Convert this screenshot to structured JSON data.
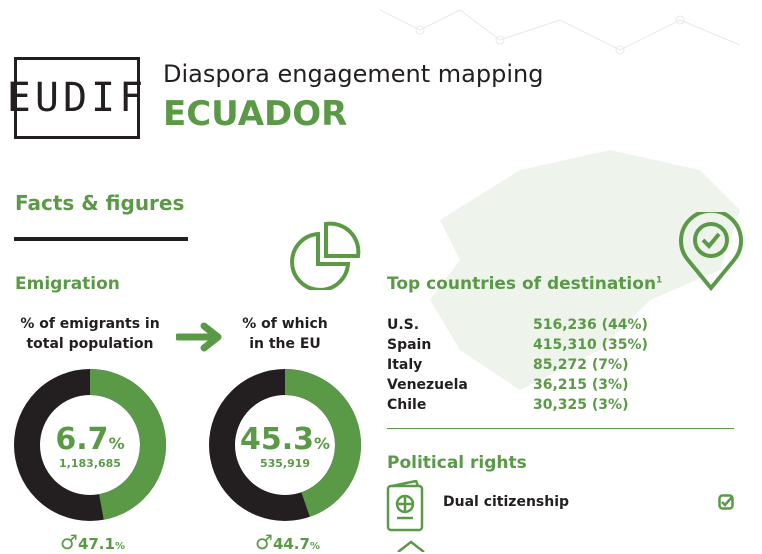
{
  "header": {
    "logo": "EUDIF",
    "title": "Diaspora engagement mapping",
    "country": "ECUADOR"
  },
  "section": {
    "title": "Facts & figures"
  },
  "emigration": {
    "title": "Emigration",
    "total": {
      "label_line1": "% of emigrants in",
      "label_line2": "total population",
      "percent": "6.7",
      "unit": "%",
      "count": "1,183,685",
      "male_percent": "47.1",
      "male_unit": "%",
      "male_share": 47.1
    },
    "eu": {
      "label_line1": "% of which",
      "label_line2": "in the EU",
      "percent": "45.3",
      "unit": "%",
      "count": "535,919",
      "male_percent": "44.7",
      "male_unit": "%",
      "male_share": 44.7
    }
  },
  "destinations": {
    "title": "Top countries of destination",
    "footnote": "1",
    "rows": [
      {
        "country": "U.S.",
        "value": "516,236 (44%)"
      },
      {
        "country": "Spain",
        "value": "415,310 (35%)"
      },
      {
        "country": "Italy",
        "value": "85,272 (7%)"
      },
      {
        "country": "Venezuela",
        "value": "36,215 (3%)"
      },
      {
        "country": "Chile",
        "value": "30,325 (3%)"
      }
    ]
  },
  "political": {
    "title": "Political rights",
    "items": [
      {
        "label": "Dual citizenship",
        "checked": true
      }
    ]
  },
  "colors": {
    "green": "#5a9a47",
    "dark": "#231f20",
    "map": "#eef3ec"
  }
}
